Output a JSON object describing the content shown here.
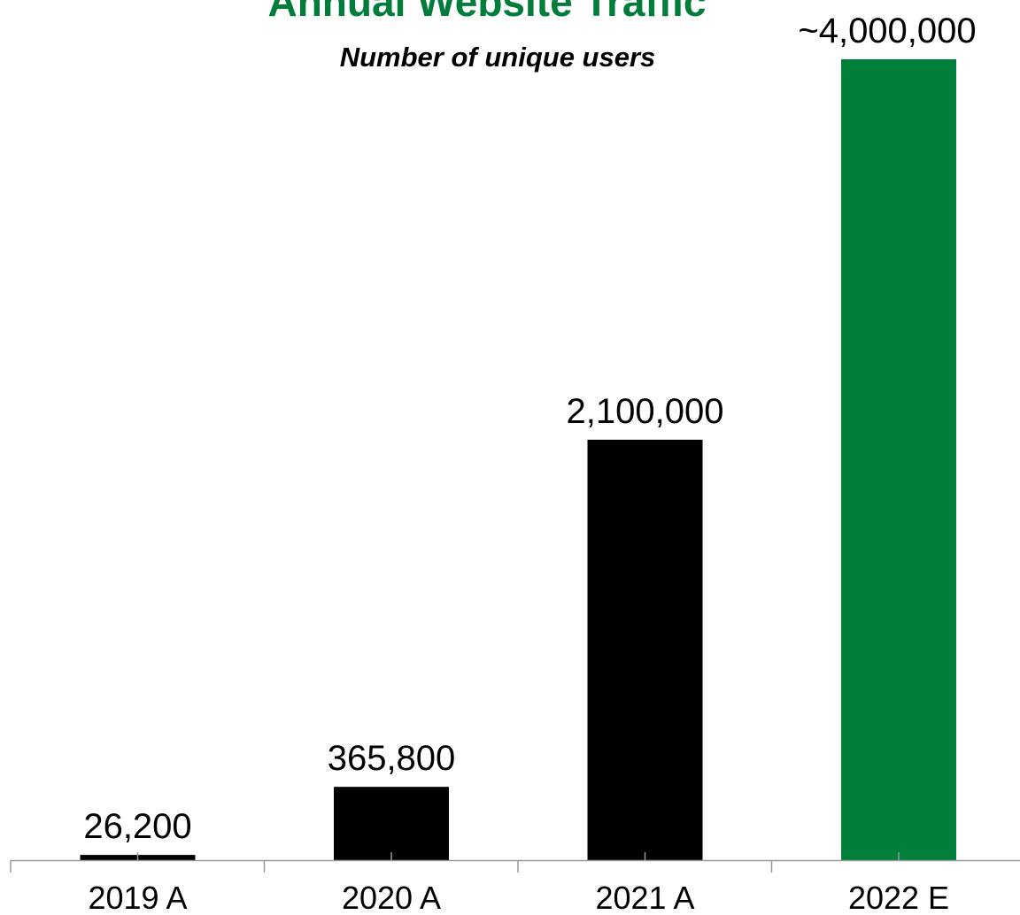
{
  "colors": {
    "title": "#007d3a",
    "actual_bar": "#000000",
    "estimate_bar": "#007f3b",
    "axis": "#999999"
  },
  "chart_data": {
    "type": "bar",
    "title": "Annual Website Traffic",
    "subtitle": "Number of unique users",
    "xlabel": "",
    "ylabel": "",
    "categories": [
      "2019 A",
      "2020 A",
      "2021 A",
      "2022 E"
    ],
    "values": [
      26200,
      365800,
      2100000,
      4000000
    ],
    "data_labels": [
      "26,200",
      "365,800",
      "2,100,000",
      "~4,000,000"
    ],
    "bar_colors": [
      "#000000",
      "#000000",
      "#000000",
      "#007f3b"
    ],
    "ylim": [
      0,
      4000000
    ],
    "grid": false,
    "legend": "none"
  }
}
